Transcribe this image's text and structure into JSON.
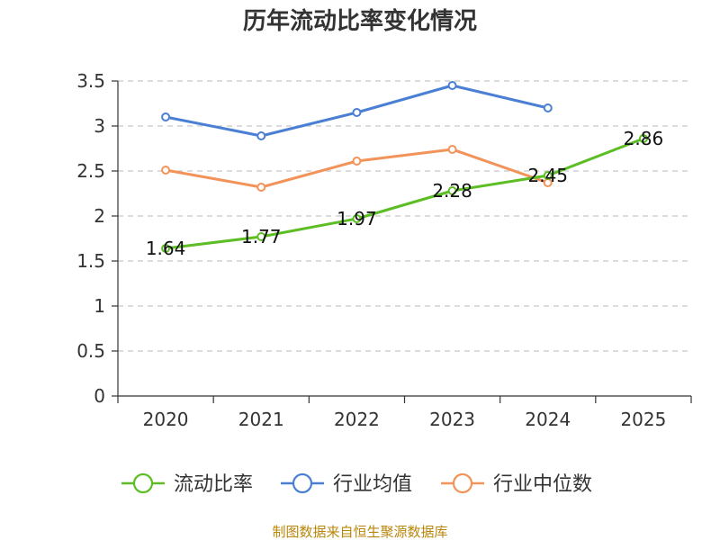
{
  "chart_data": {
    "type": "line",
    "title": "历年流动比率变化情况",
    "categories": [
      "2020",
      "2021",
      "2022",
      "2023",
      "2024",
      "2025"
    ],
    "ylim": [
      0,
      3.5
    ],
    "yticks": [
      "0",
      "0.5",
      "1",
      "1.5",
      "2",
      "2.5",
      "3",
      "3.5"
    ],
    "grid": true,
    "legend_position": "bottom",
    "series": [
      {
        "name": "流动比率",
        "color": "#5cbd24",
        "values": [
          1.64,
          1.77,
          1.97,
          2.28,
          2.45,
          2.86
        ],
        "labels": [
          "1.64",
          "1.77",
          "1.97",
          "2.28",
          "2.45",
          "2.86"
        ]
      },
      {
        "name": "行业均值",
        "color": "#4a7fd4",
        "values": [
          3.1,
          2.89,
          3.15,
          3.45,
          3.2,
          null
        ]
      },
      {
        "name": "行业中位数",
        "color": "#f2935a",
        "values": [
          2.51,
          2.32,
          2.61,
          2.74,
          2.37,
          null
        ]
      }
    ],
    "source": "制图数据来自恒生聚源数据库"
  }
}
